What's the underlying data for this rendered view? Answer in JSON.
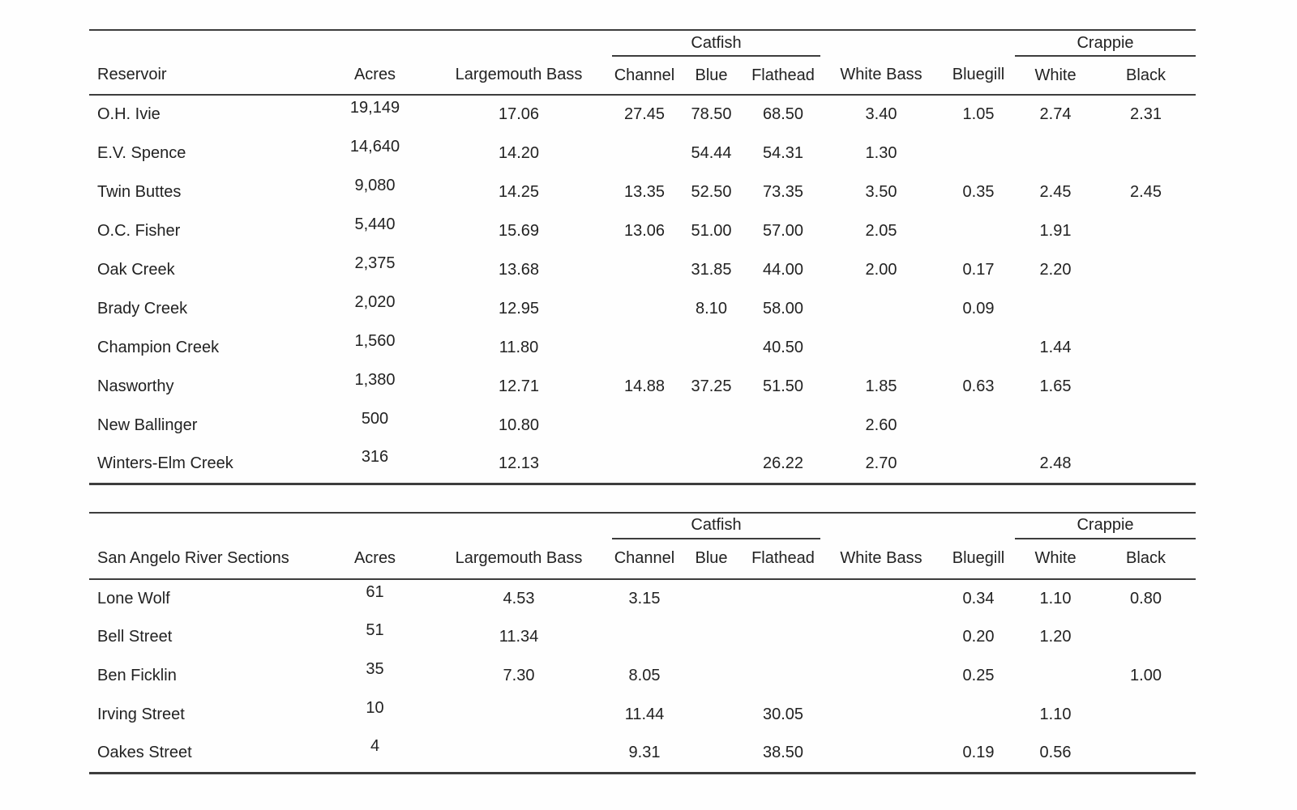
{
  "page": {
    "background": "#fefefe",
    "text_color": "#222222",
    "rule_color": "#3d3d3d"
  },
  "tables": [
    {
      "row_header_label": "Reservoir",
      "headers": {
        "acres": "Acres",
        "largemouth": "Largemouth Bass",
        "catfish_group": "Catfish",
        "catfish_cols": [
          "Channel",
          "Blue",
          "Flathead"
        ],
        "white_bass": "White Bass",
        "bluegill": "Bluegill",
        "crappie_group": "Crappie",
        "crappie_cols": [
          "White",
          "Black"
        ]
      },
      "rows": [
        {
          "name": "O.H. Ivie",
          "acres": "19,149",
          "cells": [
            "17.06",
            "27.45",
            "78.50",
            "68.50",
            "3.40",
            "1.05",
            "2.74",
            "2.31"
          ]
        },
        {
          "name": "E.V. Spence",
          "acres": "14,640",
          "cells": [
            "14.20",
            "",
            "54.44",
            "54.31",
            "1.30",
            "",
            "",
            ""
          ]
        },
        {
          "name": "Twin Buttes",
          "acres": "9,080",
          "cells": [
            "14.25",
            "13.35",
            "52.50",
            "73.35",
            "3.50",
            "0.35",
            "2.45",
            "2.45"
          ]
        },
        {
          "name": "O.C. Fisher",
          "acres": "5,440",
          "cells": [
            "15.69",
            "13.06",
            "51.00",
            "57.00",
            "2.05",
            "",
            "1.91",
            ""
          ]
        },
        {
          "name": "Oak Creek",
          "acres": "2,375",
          "cells": [
            "13.68",
            "",
            "31.85",
            "44.00",
            "2.00",
            "0.17",
            "2.20",
            ""
          ]
        },
        {
          "name": "Brady Creek",
          "acres": "2,020",
          "cells": [
            "12.95",
            "",
            "8.10",
            "58.00",
            "",
            "0.09",
            "",
            ""
          ]
        },
        {
          "name": "Champion Creek",
          "acres": "1,560",
          "cells": [
            "11.80",
            "",
            "",
            "40.50",
            "",
            "",
            "1.44",
            ""
          ]
        },
        {
          "name": "Nasworthy",
          "acres": "1,380",
          "cells": [
            "12.71",
            "14.88",
            "37.25",
            "51.50",
            "1.85",
            "0.63",
            "1.65",
            ""
          ]
        },
        {
          "name": "New Ballinger",
          "acres": "500",
          "cells": [
            "10.80",
            "",
            "",
            "",
            "2.60",
            "",
            "",
            ""
          ]
        },
        {
          "name": "Winters-Elm Creek",
          "acres": "316",
          "cells": [
            "12.13",
            "",
            "",
            "26.22",
            "2.70",
            "",
            "2.48",
            ""
          ]
        }
      ]
    },
    {
      "row_header_label": "San Angelo River Sections",
      "headers": {
        "acres": "Acres",
        "largemouth": "Largemouth Bass",
        "catfish_group": "Catfish",
        "catfish_cols": [
          "Channel",
          "Blue",
          "Flathead"
        ],
        "white_bass": "White Bass",
        "bluegill": "Bluegill",
        "crappie_group": "Crappie",
        "crappie_cols": [
          "White",
          "Black"
        ]
      },
      "rows": [
        {
          "name": "Lone Wolf",
          "acres": "61",
          "cells": [
            "4.53",
            "3.15",
            "",
            "",
            "",
            "0.34",
            "1.10",
            "0.80"
          ]
        },
        {
          "name": "Bell Street",
          "acres": "51",
          "cells": [
            "11.34",
            "",
            "",
            "",
            "",
            "0.20",
            "1.20",
            ""
          ]
        },
        {
          "name": "Ben Ficklin",
          "acres": "35",
          "cells": [
            "7.30",
            "8.05",
            "",
            "",
            "",
            "0.25",
            "",
            "1.00"
          ]
        },
        {
          "name": "Irving Street",
          "acres": "10",
          "cells": [
            "",
            "11.44",
            "",
            "30.05",
            "",
            "",
            "1.10",
            ""
          ]
        },
        {
          "name": "Oakes Street",
          "acres": "4",
          "cells": [
            "",
            "9.31",
            "",
            "38.50",
            "",
            "0.19",
            "0.56",
            ""
          ]
        }
      ]
    }
  ]
}
